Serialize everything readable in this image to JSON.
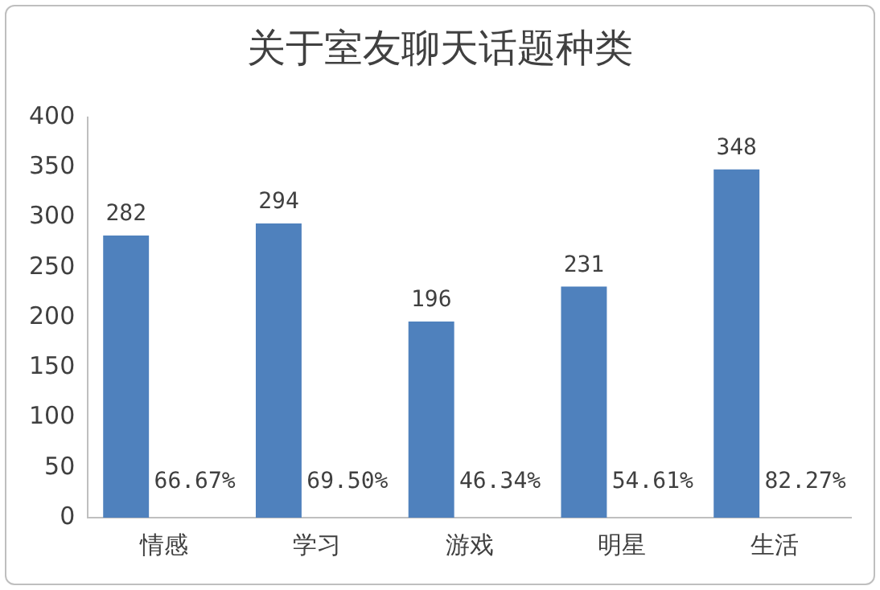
{
  "chart_data": {
    "type": "bar",
    "title": "关于室友聊天话题种类",
    "categories": [
      "情感",
      "学习",
      "游戏",
      "明星",
      "生活"
    ],
    "series": [
      {
        "color": "#4f81bd",
        "values": [
          282,
          294,
          196,
          231,
          348
        ]
      }
    ],
    "data_labels": true,
    "ylim": [
      0,
      400
    ],
    "yticks": [
      0,
      50,
      100,
      150,
      200,
      250,
      300,
      350,
      400
    ],
    "grid": false,
    "legend": false,
    "annotations": [
      "66.67%",
      "69.50%",
      "46.34%",
      "54.61%",
      "82.27%"
    ]
  }
}
